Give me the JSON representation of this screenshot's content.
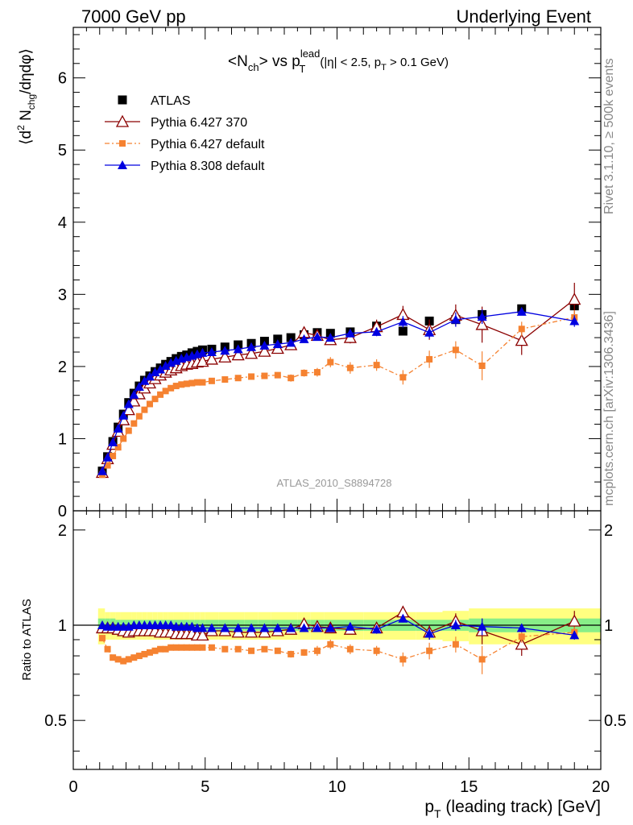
{
  "header": {
    "left": "7000 GeV pp",
    "right": "Underlying Event"
  },
  "side_labels": {
    "rivet": "Rivet 3.1.10, ≥ 500k events",
    "mcplots": "mcplots.cern.ch [arXiv:1306.3436]"
  },
  "analysis_id": "ATLAS_2010_S8894728",
  "chart_data": [
    {
      "type": "scatter",
      "panel": "main",
      "title": {
        "main_a": "<N",
        "main_a_sub": "ch",
        "main_b": "> vs p",
        "main_b_sup": "lead",
        "main_b_sub": "T",
        "cuts_a": "(|η| < 2.5, p",
        "cuts_sub": "T",
        "cuts_b": " > 0.1 GeV)"
      },
      "ylabel": {
        "a": "⟨d",
        "sup": "2",
        "b": " N",
        "sub": "chg",
        "c": "/dηdφ⟩"
      },
      "xlim": [
        0,
        20
      ],
      "ylim": [
        0,
        6.7
      ],
      "yticks": [
        "0",
        "1",
        "2",
        "3",
        "4",
        "5",
        "6"
      ],
      "legend_position": "top-left",
      "series": [
        {
          "name": "ATLAS",
          "color": "#000000",
          "marker": "square",
          "x": [
            1.1,
            1.3,
            1.5,
            1.7,
            1.9,
            2.1,
            2.3,
            2.5,
            2.7,
            2.9,
            3.1,
            3.3,
            3.5,
            3.7,
            3.9,
            4.1,
            4.3,
            4.5,
            4.7,
            4.9,
            5.25,
            5.75,
            6.25,
            6.75,
            7.25,
            7.75,
            8.25,
            8.75,
            9.25,
            9.75,
            10.5,
            11.5,
            12.5,
            13.5,
            14.5,
            15.5,
            17.0,
            19.0
          ],
          "y": [
            0.55,
            0.75,
            0.96,
            1.16,
            1.34,
            1.5,
            1.63,
            1.73,
            1.81,
            1.87,
            1.93,
            1.98,
            2.03,
            2.07,
            2.11,
            2.14,
            2.16,
            2.19,
            2.21,
            2.23,
            2.24,
            2.27,
            2.3,
            2.32,
            2.35,
            2.38,
            2.4,
            2.44,
            2.47,
            2.46,
            2.48,
            2.56,
            2.49,
            2.63,
            2.65,
            2.72,
            2.8,
            2.84
          ]
        },
        {
          "name": "Pythia 6.427 370",
          "color": "#8b0000",
          "marker": "open-triangle",
          "x": [
            1.1,
            1.3,
            1.5,
            1.7,
            1.9,
            2.1,
            2.3,
            2.5,
            2.7,
            2.9,
            3.1,
            3.3,
            3.5,
            3.7,
            3.9,
            4.1,
            4.3,
            4.5,
            4.7,
            4.9,
            5.25,
            5.75,
            6.25,
            6.75,
            7.25,
            7.75,
            8.25,
            8.75,
            9.25,
            9.75,
            10.5,
            11.5,
            12.5,
            13.5,
            14.5,
            15.5,
            17.0,
            19.0
          ],
          "y": [
            0.53,
            0.72,
            0.92,
            1.1,
            1.26,
            1.4,
            1.52,
            1.62,
            1.7,
            1.77,
            1.83,
            1.88,
            1.92,
            1.95,
            1.98,
            2.01,
            2.03,
            2.04,
            2.06,
            2.07,
            2.1,
            2.13,
            2.16,
            2.18,
            2.21,
            2.25,
            2.3,
            2.47,
            2.43,
            2.37,
            2.4,
            2.55,
            2.72,
            2.51,
            2.71,
            2.58,
            2.36,
            2.93
          ],
          "yerr": [
            0,
            0,
            0,
            0,
            0,
            0,
            0,
            0,
            0,
            0,
            0,
            0,
            0,
            0,
            0,
            0,
            0,
            0,
            0,
            0,
            0,
            0,
            0,
            0,
            0,
            0,
            0,
            0.07,
            0.07,
            0.07,
            0.08,
            0.1,
            0.12,
            0.14,
            0.15,
            0.25,
            0.2,
            0.23
          ]
        },
        {
          "name": "Pythia 6.427 default",
          "color": "#f58231",
          "marker": "square",
          "dashed": true,
          "x": [
            1.1,
            1.3,
            1.5,
            1.7,
            1.9,
            2.1,
            2.3,
            2.5,
            2.7,
            2.9,
            3.1,
            3.3,
            3.5,
            3.7,
            3.9,
            4.1,
            4.3,
            4.5,
            4.7,
            4.9,
            5.25,
            5.75,
            6.25,
            6.75,
            7.25,
            7.75,
            8.25,
            8.75,
            9.25,
            9.75,
            10.5,
            11.5,
            12.5,
            13.5,
            14.5,
            15.5,
            17.0,
            19.0
          ],
          "y": [
            0.5,
            0.63,
            0.76,
            0.88,
            1.0,
            1.11,
            1.21,
            1.31,
            1.4,
            1.48,
            1.55,
            1.61,
            1.66,
            1.7,
            1.73,
            1.75,
            1.76,
            1.77,
            1.78,
            1.78,
            1.8,
            1.82,
            1.84,
            1.86,
            1.87,
            1.88,
            1.84,
            1.91,
            1.92,
            2.06,
            1.98,
            2.02,
            1.85,
            2.1,
            2.23,
            2.01,
            2.52,
            2.68
          ],
          "yerr": [
            0,
            0,
            0,
            0,
            0,
            0,
            0,
            0,
            0,
            0,
            0,
            0,
            0,
            0,
            0,
            0,
            0,
            0,
            0,
            0,
            0,
            0,
            0,
            0,
            0,
            0.04,
            0.05,
            0.05,
            0.06,
            0.07,
            0.08,
            0.08,
            0.1,
            0.12,
            0.12,
            0.2,
            0.1,
            0.1
          ]
        },
        {
          "name": "Pythia 8.308 default",
          "color": "#0000e0",
          "marker": "filled-triangle",
          "x": [
            1.1,
            1.3,
            1.5,
            1.7,
            1.9,
            2.1,
            2.3,
            2.5,
            2.7,
            2.9,
            3.1,
            3.3,
            3.5,
            3.7,
            3.9,
            4.1,
            4.3,
            4.5,
            4.7,
            4.9,
            5.25,
            5.75,
            6.25,
            6.75,
            7.25,
            7.75,
            8.25,
            8.75,
            9.25,
            9.75,
            10.5,
            11.5,
            12.5,
            13.5,
            14.5,
            15.5,
            17.0,
            19.0
          ],
          "y": [
            0.55,
            0.74,
            0.95,
            1.14,
            1.32,
            1.48,
            1.61,
            1.72,
            1.8,
            1.86,
            1.92,
            1.96,
            2.01,
            2.05,
            2.08,
            2.11,
            2.13,
            2.15,
            2.17,
            2.19,
            2.2,
            2.22,
            2.24,
            2.27,
            2.29,
            2.31,
            2.33,
            2.38,
            2.41,
            2.4,
            2.46,
            2.48,
            2.62,
            2.47,
            2.65,
            2.69,
            2.76,
            2.63
          ],
          "yerr": [
            0,
            0,
            0,
            0,
            0,
            0,
            0,
            0,
            0,
            0,
            0,
            0,
            0,
            0,
            0,
            0,
            0,
            0,
            0,
            0,
            0,
            0,
            0,
            0,
            0,
            0,
            0,
            0.03,
            0.04,
            0.05,
            0.05,
            0.06,
            0.08,
            0.08,
            0.1,
            0.1,
            0.05,
            0.08
          ]
        }
      ]
    },
    {
      "type": "scatter",
      "panel": "ratio",
      "ylabel": "Ratio to ATLAS",
      "xlabel": {
        "a": "p",
        "sub": "T",
        "b": " (leading track) [GeV]"
      },
      "xlim": [
        0,
        20
      ],
      "ylim": [
        0.35,
        2.3
      ],
      "ylog": true,
      "yticks": [
        "0.5",
        "1",
        "2"
      ],
      "xticks": [
        "0",
        "5",
        "10",
        "15",
        "20"
      ],
      "band_x": [
        0.94,
        1.2,
        1.4,
        1.6,
        1.8,
        2.0,
        2.2,
        2.4,
        2.6,
        2.8,
        3.0,
        3.2,
        3.4,
        3.6,
        3.8,
        4.0,
        4.2,
        4.4,
        4.6,
        4.8,
        5.0,
        5.5,
        6.0,
        6.5,
        7.0,
        7.5,
        8.0,
        8.5,
        9.0,
        9.5,
        10.0,
        11.0,
        12.0,
        13.0,
        14.0,
        15.0,
        16.0,
        18.0,
        20.0
      ],
      "band_stat_half": [
        0.05,
        0.05,
        0.05,
        0.04,
        0.04,
        0.04,
        0.04,
        0.04,
        0.04,
        0.04,
        0.04,
        0.04,
        0.04,
        0.04,
        0.04,
        0.04,
        0.04,
        0.04,
        0.04,
        0.04,
        0.04,
        0.04,
        0.04,
        0.04,
        0.04,
        0.04,
        0.04,
        0.04,
        0.04,
        0.04,
        0.04,
        0.04,
        0.04,
        0.04,
        0.04,
        0.05,
        0.05,
        0.05
      ],
      "band_tot_half": [
        0.13,
        0.1,
        0.1,
        0.1,
        0.1,
        0.1,
        0.1,
        0.1,
        0.1,
        0.1,
        0.1,
        0.1,
        0.1,
        0.1,
        0.1,
        0.1,
        0.1,
        0.1,
        0.1,
        0.1,
        0.1,
        0.1,
        0.1,
        0.1,
        0.1,
        0.1,
        0.1,
        0.1,
        0.1,
        0.1,
        0.1,
        0.1,
        0.1,
        0.1,
        0.11,
        0.13,
        0.13,
        0.13
      ],
      "band_colors": {
        "total": "#ffff80",
        "stat": "#88ee88"
      },
      "series": [
        {
          "name": "Pythia 6.427 370",
          "color": "#8b0000",
          "marker": "open-triangle",
          "x": [
            1.1,
            1.3,
            1.5,
            1.7,
            1.9,
            2.1,
            2.3,
            2.5,
            2.7,
            2.9,
            3.1,
            3.3,
            3.5,
            3.7,
            3.9,
            4.1,
            4.3,
            4.5,
            4.7,
            4.9,
            5.25,
            5.75,
            6.25,
            6.75,
            7.25,
            7.75,
            8.25,
            8.75,
            9.25,
            9.75,
            10.5,
            11.5,
            12.5,
            13.5,
            14.5,
            15.5,
            17.0,
            19.0
          ],
          "y": [
            0.98,
            0.98,
            0.98,
            0.97,
            0.96,
            0.95,
            0.96,
            0.96,
            0.96,
            0.96,
            0.96,
            0.95,
            0.95,
            0.95,
            0.94,
            0.94,
            0.94,
            0.94,
            0.93,
            0.93,
            0.96,
            0.96,
            0.95,
            0.95,
            0.95,
            0.96,
            0.97,
            1.01,
            0.99,
            0.98,
            0.97,
            0.98,
            1.1,
            0.95,
            1.03,
            0.96,
            0.87,
            1.03
          ],
          "yerr": [
            0,
            0,
            0,
            0,
            0,
            0,
            0,
            0,
            0,
            0,
            0,
            0,
            0,
            0,
            0,
            0,
            0,
            0,
            0,
            0,
            0,
            0,
            0,
            0,
            0,
            0,
            0,
            0.03,
            0.03,
            0.03,
            0.03,
            0.04,
            0.05,
            0.05,
            0.06,
            0.09,
            0.07,
            0.08
          ]
        },
        {
          "name": "Pythia 6.427 default",
          "color": "#f58231",
          "marker": "square",
          "dashed": true,
          "x": [
            1.1,
            1.3,
            1.5,
            1.7,
            1.9,
            2.1,
            2.3,
            2.5,
            2.7,
            2.9,
            3.1,
            3.3,
            3.5,
            3.7,
            3.9,
            4.1,
            4.3,
            4.5,
            4.7,
            4.9,
            5.25,
            5.75,
            6.25,
            6.75,
            7.25,
            7.75,
            8.25,
            8.75,
            9.25,
            9.75,
            10.5,
            11.5,
            12.5,
            13.5,
            14.5,
            15.5,
            17.0,
            19.0
          ],
          "y": [
            0.91,
            0.84,
            0.79,
            0.78,
            0.77,
            0.78,
            0.79,
            0.8,
            0.81,
            0.82,
            0.83,
            0.84,
            0.84,
            0.85,
            0.85,
            0.85,
            0.85,
            0.85,
            0.85,
            0.85,
            0.85,
            0.84,
            0.84,
            0.83,
            0.84,
            0.83,
            0.81,
            0.82,
            0.83,
            0.87,
            0.84,
            0.83,
            0.78,
            0.83,
            0.87,
            0.78,
            0.92,
            0.95
          ],
          "yerr": [
            0,
            0,
            0,
            0,
            0,
            0,
            0,
            0,
            0,
            0,
            0,
            0,
            0,
            0,
            0,
            0,
            0,
            0,
            0,
            0,
            0,
            0,
            0,
            0,
            0,
            0,
            0.02,
            0.02,
            0.03,
            0.03,
            0.03,
            0.03,
            0.04,
            0.05,
            0.05,
            0.08,
            0.04,
            0.04
          ]
        },
        {
          "name": "Pythia 8.308 default",
          "color": "#0000e0",
          "marker": "filled-triangle",
          "x": [
            1.1,
            1.3,
            1.5,
            1.7,
            1.9,
            2.1,
            2.3,
            2.5,
            2.7,
            2.9,
            3.1,
            3.3,
            3.5,
            3.7,
            3.9,
            4.1,
            4.3,
            4.5,
            4.7,
            4.9,
            5.25,
            5.75,
            6.25,
            6.75,
            7.25,
            7.75,
            8.25,
            8.75,
            9.25,
            9.75,
            10.5,
            11.5,
            12.5,
            13.5,
            14.5,
            15.5,
            17.0,
            19.0
          ],
          "y": [
            1.0,
            0.99,
            0.99,
            0.99,
            0.99,
            0.99,
            1.0,
            1.0,
            1.0,
            1.0,
            1.0,
            1.0,
            1.0,
            1.0,
            0.99,
            0.99,
            0.99,
            0.99,
            0.98,
            0.98,
            0.98,
            0.98,
            0.98,
            0.98,
            0.98,
            0.98,
            0.98,
            0.98,
            0.98,
            0.98,
            0.99,
            0.97,
            1.05,
            0.94,
            1.0,
            0.99,
            0.98,
            0.93
          ],
          "yerr": [
            0,
            0,
            0,
            0,
            0,
            0,
            0,
            0,
            0,
            0,
            0,
            0,
            0,
            0,
            0,
            0,
            0,
            0,
            0,
            0,
            0,
            0,
            0,
            0,
            0,
            0,
            0,
            0.02,
            0.02,
            0.02,
            0.02,
            0.03,
            0.03,
            0.04,
            0.04,
            0.06,
            0.03,
            0.03
          ]
        }
      ]
    }
  ]
}
